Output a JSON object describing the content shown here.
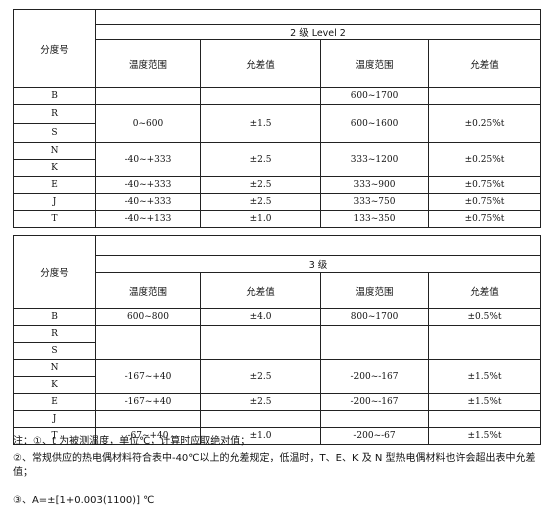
{
  "table1": {
    "corner": "分度号",
    "group_title": "2 级     Level 2",
    "headers": [
      "温度范围",
      "允差值",
      "温度范围",
      "允差值"
    ],
    "rows": {
      "B": {
        "code": "B",
        "r1": "",
        "t1": "",
        "r2": "600~1700",
        "t2": ""
      },
      "RS": {
        "codes": [
          "R",
          "S"
        ],
        "r1": "0~600",
        "t1": "±1.5",
        "r2": "600~1600",
        "t2": "±0.25%t"
      },
      "NK": {
        "codes": [
          "N",
          "K"
        ],
        "r1": "-40~+333",
        "t1": "±2.5",
        "r2": "333~1200",
        "t2": "±0.25%t"
      },
      "E": {
        "code": "E",
        "r1": "-40~+333",
        "t1": "±2.5",
        "r2": "333~900",
        "t2": "±0.75%t"
      },
      "J": {
        "code": "J",
        "r1": "-40~+333",
        "t1": "±2.5",
        "r2": "333~750",
        "t2": "±0.75%t"
      },
      "T": {
        "code": "T",
        "r1": "-40~+133",
        "t1": "±1.0",
        "r2": "133~350",
        "t2": "±0.75%t"
      }
    }
  },
  "table2": {
    "corner": "分度号",
    "group_title": "3 级",
    "headers": [
      "温度范围",
      "允差值",
      "温度范围",
      "允差值"
    ],
    "rows": {
      "B": {
        "code": "B",
        "r1": "600~800",
        "t1": "±4.0",
        "r2": "800~1700",
        "t2": "±0.5%t"
      },
      "R": {
        "code": "R"
      },
      "S": {
        "code": "S"
      },
      "NK": {
        "codes": [
          "N",
          "K"
        ],
        "r1": "-167~+40",
        "t1": "±2.5",
        "r2": "-200~-167",
        "t2": "±1.5%t"
      },
      "E": {
        "code": "E",
        "r1": "-167~+40",
        "t1": "±2.5",
        "r2": "-200~-167",
        "t2": "±1.5%t"
      },
      "J": {
        "code": "J"
      },
      "T": {
        "code": "T",
        "r1": "-67~+40",
        "t1": "±1.0",
        "r2": "-200~-67",
        "t2": "±1.5%t"
      }
    }
  },
  "notes": [
    "注：①、t 为被测温度，单位℃，计算时应取绝对值；",
    "②、常规供应的热电偶材料符合表中-40℃以上的允差规定，低温时，T、E、K 及 N 型热电偶材料也许会超出表中允差值；",
    "③、A=±[1+0.003(1100)] ℃"
  ]
}
